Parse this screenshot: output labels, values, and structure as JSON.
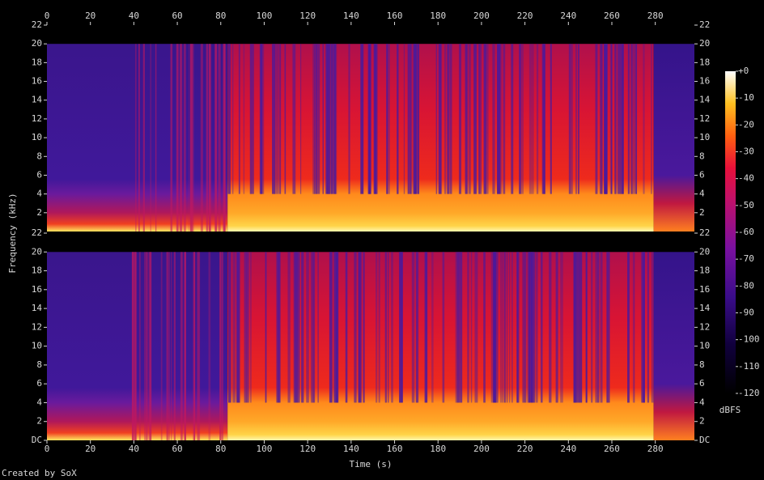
{
  "chart_data": {
    "type": "spectrogram",
    "xlabel": "Time (s)",
    "ylabel": "Frequency (kHz)",
    "xlim": [
      0,
      298
    ],
    "xticks": [
      0,
      20,
      40,
      60,
      80,
      100,
      120,
      140,
      160,
      180,
      200,
      220,
      240,
      260,
      280
    ],
    "channels": [
      {
        "ylim": [
          0,
          22
        ],
        "yticks": [
          2,
          4,
          6,
          8,
          10,
          12,
          14,
          16,
          18,
          20,
          22
        ]
      },
      {
        "ylim": [
          0,
          22
        ],
        "yticks": [
          {
            "value": 0,
            "label": "DC"
          },
          2,
          4,
          6,
          8,
          10,
          12,
          14,
          16,
          18,
          20,
          22
        ]
      }
    ],
    "colorbar": {
      "label": "dBFS",
      "lim": [
        -120,
        0
      ],
      "ticks": [
        {
          "value": 0,
          "label": "+0"
        },
        -10,
        -20,
        -30,
        -40,
        -50,
        -60,
        -70,
        -80,
        -90,
        -100,
        -110,
        -120
      ]
    },
    "footer": "Created by SoX"
  }
}
